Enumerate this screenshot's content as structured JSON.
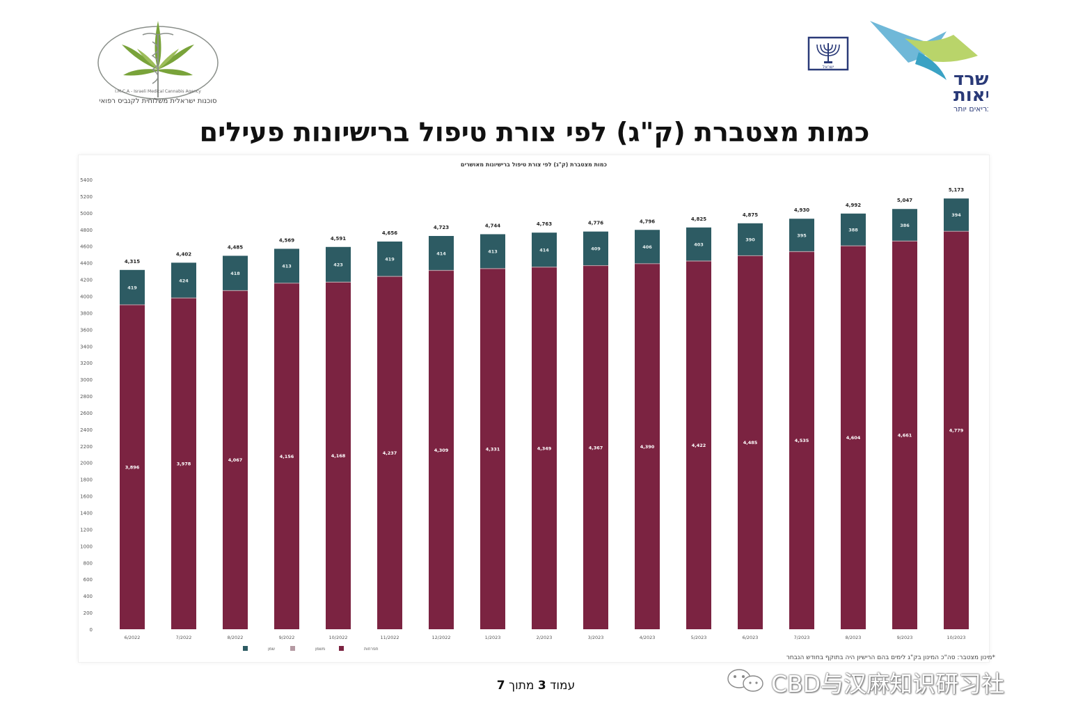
{
  "title": "כמות מצטברת (ק\"ג) לפי צורת טיפול ברישיונות פעילים",
  "logos": {
    "left_text": "סוכנות ישראלית משלוחית לקנביס רפואי",
    "left_text_en": "I.M.C.A - Israeli Medical Cannabis Agency",
    "moh_line1": "משרד",
    "moh_line2": "הבריאות",
    "moh_tagline": "לחיים בריאים יותר",
    "emblem_text": "ישראל"
  },
  "chart_data": {
    "type": "bar",
    "stacked": true,
    "title": "כמות מצטברת (ק\"ג) לפי צורת טיפול ברישיונות מאושרים",
    "categories": [
      "6/2022",
      "7/2022",
      "8/2022",
      "9/2022",
      "10/2022",
      "11/2022",
      "12/2022",
      "1/2023",
      "2/2023",
      "3/2023",
      "4/2023",
      "5/2023",
      "6/2023",
      "7/2023",
      "8/2023",
      "9/2023",
      "10/2023"
    ],
    "series": [
      {
        "name": "תפרחות",
        "color": "#7b2341",
        "values": [
          3896,
          3978,
          4067,
          4156,
          4168,
          4237,
          4309,
          4331,
          4349,
          4367,
          4390,
          4422,
          4485,
          4535,
          4604,
          4661,
          4779
        ]
      },
      {
        "name": "משמן",
        "color": "#b59aa3",
        "values": [
          0,
          0,
          0,
          0,
          0,
          0,
          0,
          0,
          0,
          0,
          0,
          0,
          0,
          0,
          0,
          0,
          0
        ]
      },
      {
        "name": "שמן",
        "color": "#2d5b63",
        "values": [
          419,
          424,
          418,
          413,
          423,
          419,
          414,
          413,
          414,
          409,
          406,
          403,
          390,
          395,
          388,
          386,
          394
        ]
      }
    ],
    "series_labels": [
      [
        "3,896",
        "3,978",
        "4,067",
        "4,156",
        "4,168",
        "4,237",
        "4,309",
        "4,331",
        "4,349",
        "4,367",
        "4,390",
        "4,422",
        "4,485",
        "4,535",
        "4,604",
        "4,661",
        "4,779"
      ],
      [],
      [
        "419",
        "424",
        "418",
        "413",
        "423",
        "419",
        "414",
        "413",
        "414",
        "409",
        "406",
        "403",
        "390",
        "395",
        "388",
        "386",
        "394"
      ]
    ],
    "totals": [
      4315,
      4402,
      4485,
      4569,
      4591,
      4656,
      4723,
      4744,
      4763,
      4776,
      4796,
      4825,
      4875,
      4930,
      4992,
      5047,
      5173
    ],
    "total_labels": [
      "4,315",
      "4,402",
      "4,485",
      "4,569",
      "4,591",
      "4,656",
      "4,723",
      "4,744",
      "4,763",
      "4,776",
      "4,796",
      "4,825",
      "4,875",
      "4,930",
      "4,992",
      "5,047",
      "5,173"
    ],
    "ylim": [
      0,
      5400
    ],
    "yticks": [
      0,
      200,
      400,
      600,
      800,
      1000,
      1200,
      1400,
      1600,
      1800,
      2000,
      2200,
      2400,
      2600,
      2800,
      3000,
      3200,
      3400,
      3600,
      3800,
      4000,
      4200,
      4400,
      4600,
      4800,
      5000,
      5200,
      5400
    ],
    "grid": false,
    "legend": "bottom-left"
  },
  "footnote": "*מינון מצטבר: סה\"כ המינון בק\"ג לימים בהם הרישיון היה בתוקף בחודש הנבחר",
  "page_number": {
    "prefix": "עמוד",
    "current": "3",
    "middle": "מתוך",
    "total": "7"
  },
  "watermark": "CBD与汉麻知识研习社"
}
